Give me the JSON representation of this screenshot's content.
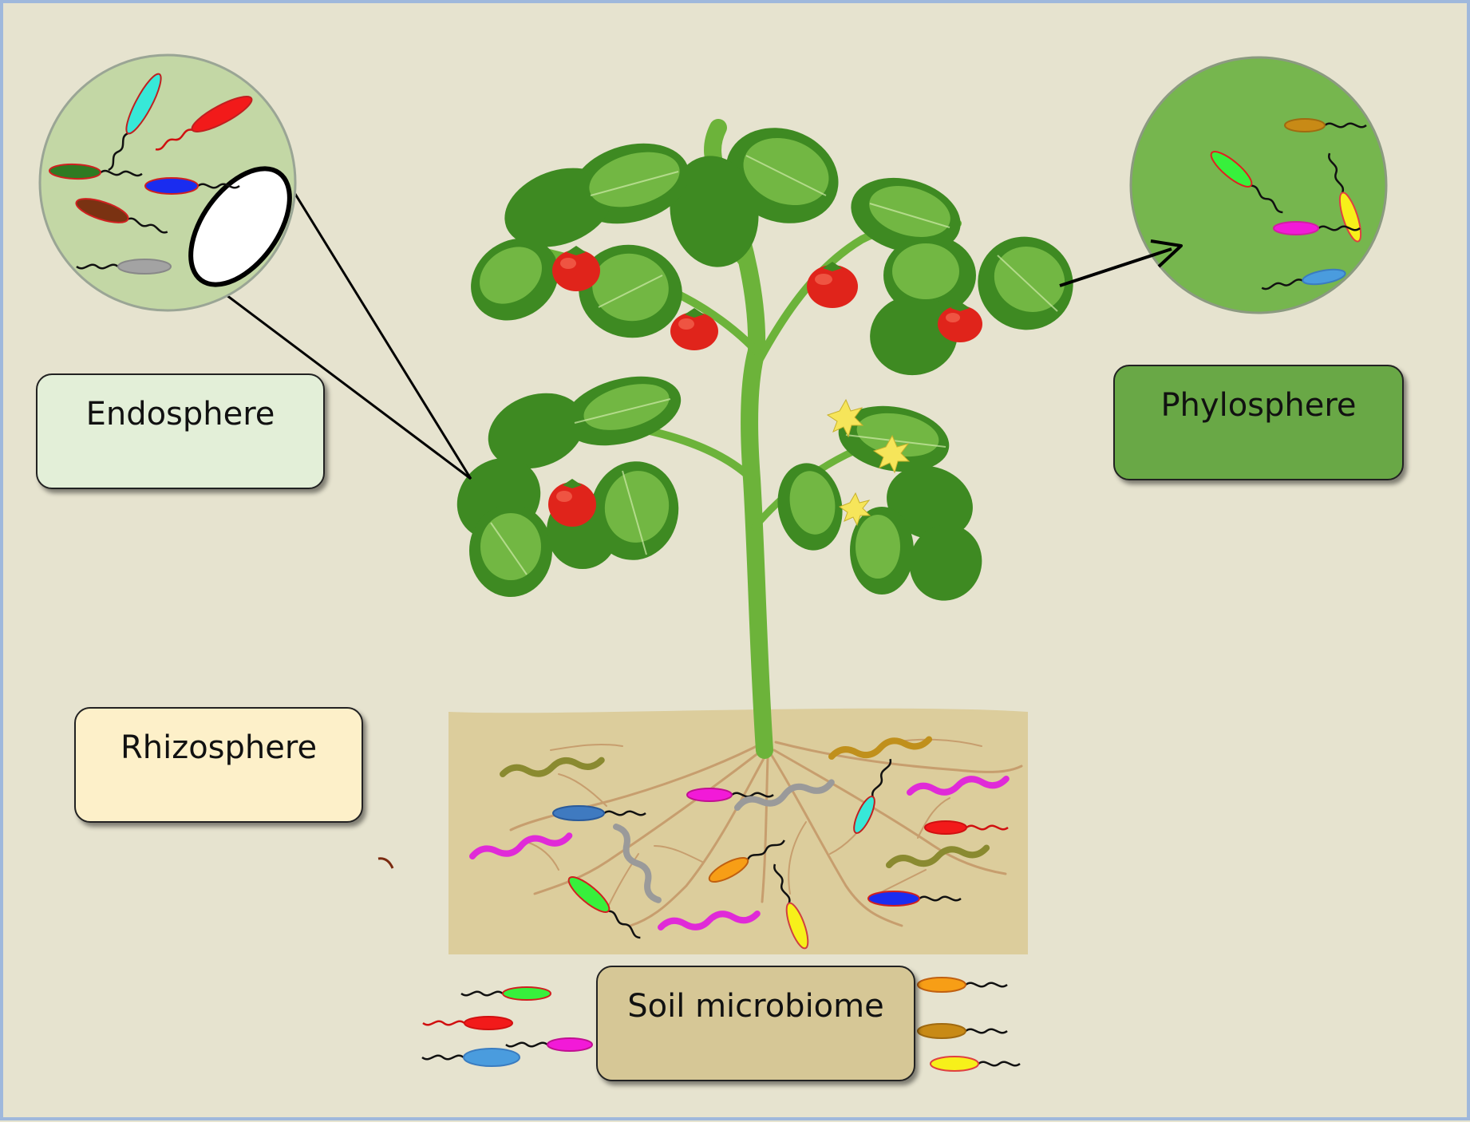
{
  "labels": {
    "endosphere": "Endosphere",
    "phylosphere": "Phylosphere",
    "rhizosphere": "Rhizosphere",
    "soil_microbiome": "Soil microbiome"
  },
  "colors": {
    "background": "#e6e3cf",
    "frame": "#9fb8dc",
    "endosphere_box": "#e3efd8",
    "phylosphere_box": "#69a846",
    "rhizosphere_box": "#fdf0c9",
    "soil_box": "#d6c796",
    "soil_patch": "#dccd9c",
    "endosphere_circle": "#c3d7a5",
    "phylosphere_circle": "#76b64e",
    "leaf": "#4f9a2c",
    "leaf_light": "#7cc04a",
    "stem": "#6cb33a",
    "tomato": "#e0241b",
    "root": "#c79e6e"
  },
  "icons": [
    "bacterium-icon",
    "tomato-icon",
    "leaf-icon",
    "flower-icon",
    "root-icon",
    "magnifier-lens-icon",
    "arrow-icon"
  ]
}
